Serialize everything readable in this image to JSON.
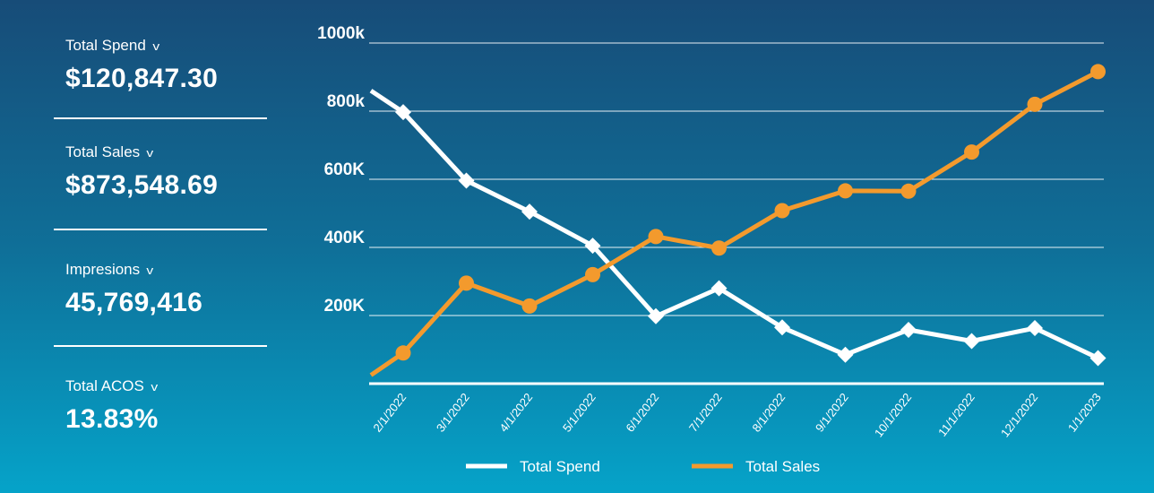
{
  "metrics": [
    {
      "label": "Total Spend",
      "value": "$120,847.30"
    },
    {
      "label": "Total Sales",
      "value": "$873,548.69"
    },
    {
      "label": "Impresions",
      "value": "45,769,416"
    },
    {
      "label": "Total ACOS",
      "value": "13.83%"
    }
  ],
  "chevron": "v",
  "chart_data": {
    "type": "line",
    "categories": [
      "2/1/2022",
      "3/1/2022",
      "4/1/2022",
      "5/1/2022",
      "6/1/2022",
      "7/1/2022",
      "8/1/2022",
      "9/1/2022",
      "10/1/2022",
      "11/1/2022",
      "12/1/2022",
      "1/1/2023"
    ],
    "y_ticks": [
      {
        "value": 200000,
        "label": "200K"
      },
      {
        "value": 400000,
        "label": "400K"
      },
      {
        "value": 600000,
        "label": "600K"
      },
      {
        "value": 800000,
        "label": "800k"
      },
      {
        "value": 1000000,
        "label": "1000k"
      }
    ],
    "ylim": [
      0,
      1000000
    ],
    "grid": true,
    "legend_position": "bottom",
    "series": [
      {
        "name": "Total Spend",
        "color": "#ffffff",
        "marker": "diamond",
        "start_value": 860000,
        "values": [
          797000,
          596000,
          505000,
          405000,
          198000,
          280000,
          165000,
          85000,
          158000,
          125000,
          163000,
          75000
        ]
      },
      {
        "name": "Total Sales",
        "color": "#f39a2d",
        "marker": "circle",
        "start_value": 25000,
        "values": [
          90000,
          295000,
          228000,
          320000,
          432000,
          398000,
          508000,
          566000,
          565000,
          680000,
          820000,
          916000
        ]
      }
    ]
  }
}
